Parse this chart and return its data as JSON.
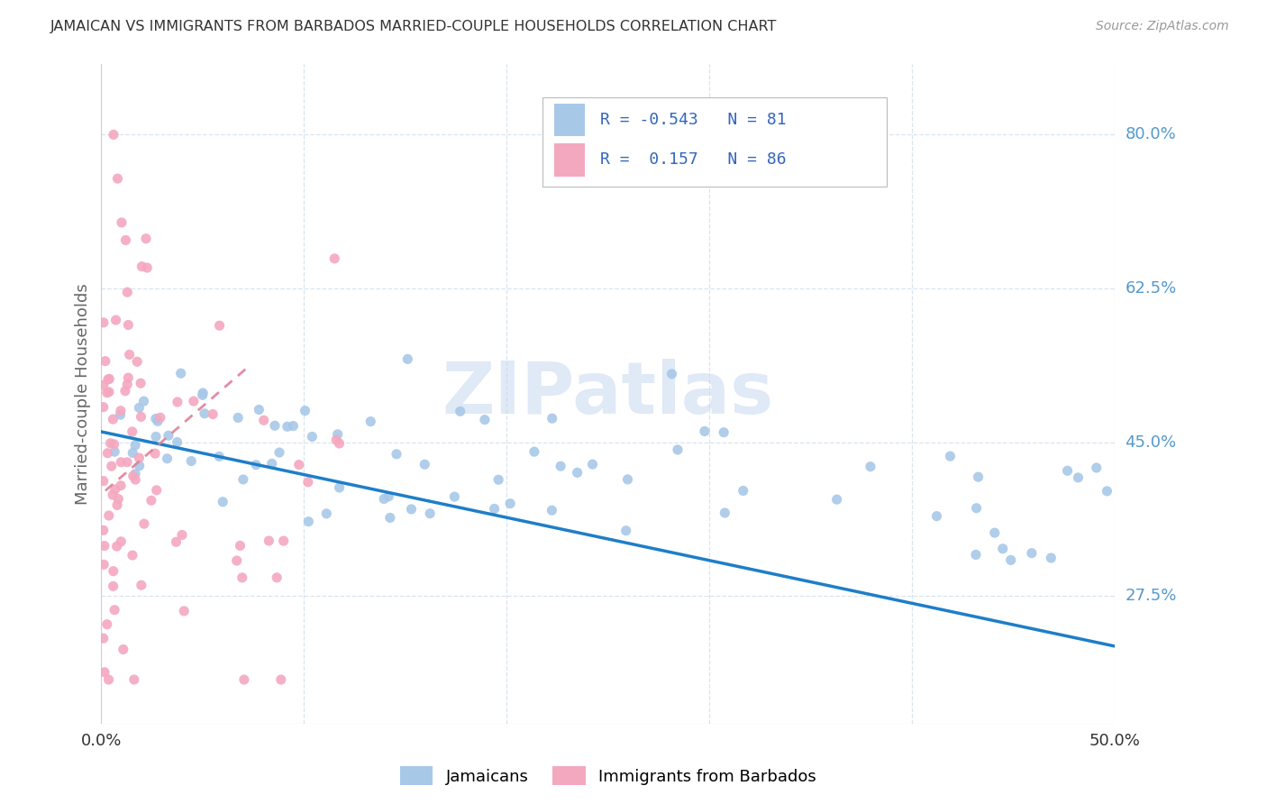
{
  "title": "JAMAICAN VS IMMIGRANTS FROM BARBADOS MARRIED-COUPLE HOUSEHOLDS CORRELATION CHART",
  "source": "Source: ZipAtlas.com",
  "ylabel": "Married-couple Households",
  "y_ticks": [
    0.275,
    0.45,
    0.625,
    0.8
  ],
  "y_tick_labels": [
    "27.5%",
    "45.0%",
    "62.5%",
    "80.0%"
  ],
  "x_min": 0.0,
  "x_max": 0.5,
  "y_min": 0.13,
  "y_max": 0.88,
  "blue_color": "#A8C8E8",
  "pink_color": "#F4A8C0",
  "blue_line_color": "#1E7EC8",
  "pink_line_color": "#E08098",
  "blue_R": -0.543,
  "blue_N": 81,
  "pink_R": 0.157,
  "pink_N": 86,
  "blue_line_x": [
    0.0,
    0.5
  ],
  "blue_line_y": [
    0.462,
    0.218
  ],
  "pink_line_x": [
    0.002,
    0.072
  ],
  "pink_line_y": [
    0.395,
    0.535
  ],
  "watermark_text": "ZIPatlas",
  "watermark_color": "#C8D8F0",
  "grid_color": "#D8E4F0",
  "title_color": "#333333",
  "source_color": "#999999",
  "label_color": "#5599CC",
  "tick_label_color": "#5599CC",
  "legend_text_color": "#3366BB",
  "bottom_legend_color_blue": "#A8C8E8",
  "bottom_legend_color_pink": "#F4A8C0"
}
